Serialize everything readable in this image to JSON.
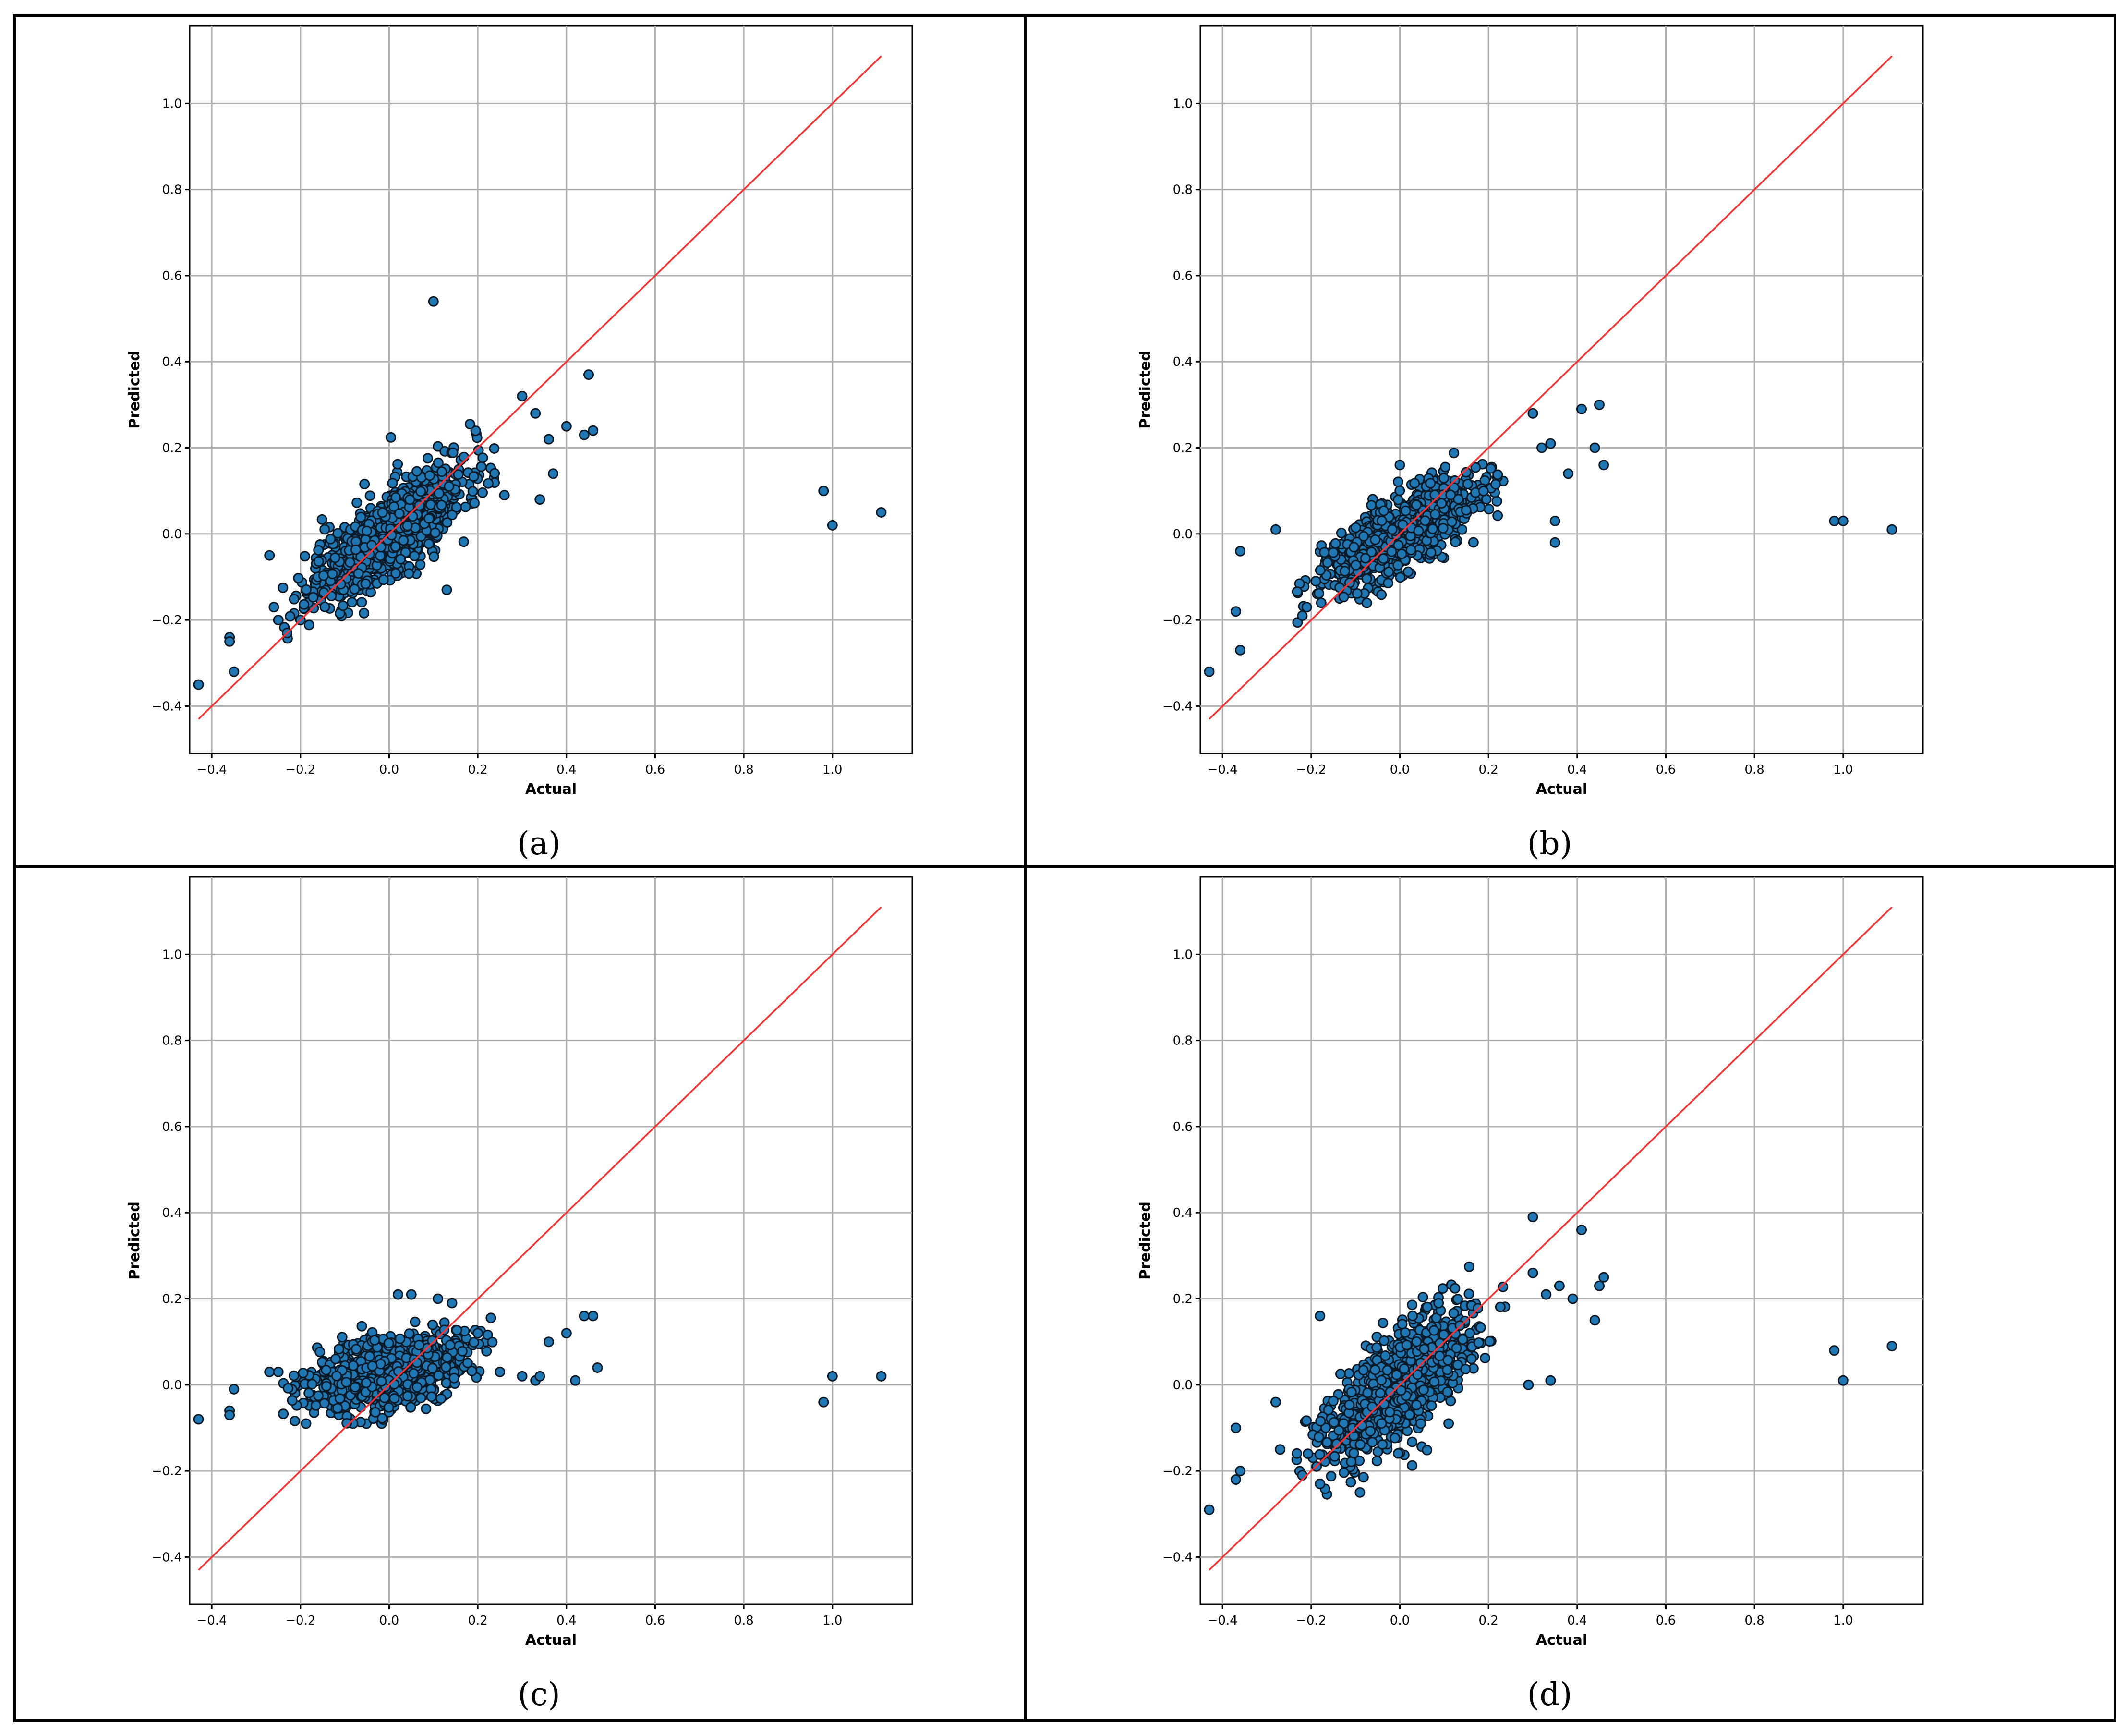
{
  "figure": {
    "colors": {
      "point_fill": "#1f77b4",
      "point_edge": "#0b1a26",
      "reference_line": "#ff3030",
      "grid": "#b0b0b0"
    }
  },
  "chart_data": [
    {
      "panel_label": "(a)",
      "type": "scatter",
      "title": "",
      "xlabel": "Actual",
      "ylabel": "Predicted",
      "xlim": [
        -0.45,
        1.18
      ],
      "ylim": [
        -0.51,
        1.18
      ],
      "xticks": [
        -0.4,
        -0.2,
        0.0,
        0.2,
        0.4,
        0.6,
        0.8,
        1.0
      ],
      "yticks": [
        -0.4,
        -0.2,
        0.0,
        0.2,
        0.4,
        0.6,
        0.8,
        1.0
      ],
      "tick_labels_x": [
        "−0.4",
        "−0.2",
        "0.0",
        "0.2",
        "0.4",
        "0.6",
        "0.8",
        "1.0"
      ],
      "tick_labels_y": [
        "−0.4",
        "−0.2",
        "0.0",
        "0.2",
        "0.4",
        "0.6",
        "0.8",
        "1.0"
      ],
      "grid": true,
      "reference_line": {
        "from": [
          -0.43,
          -0.43
        ],
        "to": [
          1.11,
          1.11
        ]
      },
      "cloud": {
        "slope": 0.7,
        "spread": 0.048,
        "seed": 11
      },
      "points": [
        [
          -0.43,
          -0.35
        ],
        [
          -0.36,
          -0.24
        ],
        [
          -0.36,
          -0.25
        ],
        [
          -0.35,
          -0.32
        ],
        [
          -0.27,
          -0.05
        ],
        [
          -0.26,
          -0.17
        ],
        [
          -0.25,
          -0.2
        ],
        [
          -0.23,
          -0.23
        ],
        [
          -0.2,
          -0.2
        ],
        [
          0.1,
          0.54
        ],
        [
          0.3,
          0.32
        ],
        [
          0.33,
          0.28
        ],
        [
          0.36,
          0.22
        ],
        [
          0.37,
          0.14
        ],
        [
          0.4,
          0.25
        ],
        [
          0.44,
          0.23
        ],
        [
          0.45,
          0.37
        ],
        [
          0.46,
          0.24
        ],
        [
          0.34,
          0.08
        ],
        [
          0.26,
          0.09
        ],
        [
          0.13,
          -0.13
        ],
        [
          0.98,
          0.1
        ],
        [
          1.0,
          0.02
        ],
        [
          1.11,
          0.05
        ]
      ]
    },
    {
      "panel_label": "(b)",
      "type": "scatter",
      "title": "",
      "xlabel": "Actual",
      "ylabel": "Predicted",
      "xlim": [
        -0.45,
        1.18
      ],
      "ylim": [
        -0.51,
        1.18
      ],
      "xticks": [
        -0.4,
        -0.2,
        0.0,
        0.2,
        0.4,
        0.6,
        0.8,
        1.0
      ],
      "yticks": [
        -0.4,
        -0.2,
        0.0,
        0.2,
        0.4,
        0.6,
        0.8,
        1.0
      ],
      "tick_labels_x": [
        "−0.4",
        "−0.2",
        "0.0",
        "0.2",
        "0.4",
        "0.6",
        "0.8",
        "1.0"
      ],
      "tick_labels_y": [
        "−0.4",
        "−0.2",
        "0.0",
        "0.2",
        "0.4",
        "0.6",
        "0.8",
        "1.0"
      ],
      "grid": true,
      "reference_line": {
        "from": [
          -0.43,
          -0.43
        ],
        "to": [
          1.11,
          1.11
        ]
      },
      "cloud": {
        "slope": 0.55,
        "spread": 0.04,
        "seed": 23
      },
      "points": [
        [
          -0.43,
          -0.32
        ],
        [
          -0.37,
          -0.18
        ],
        [
          -0.36,
          -0.04
        ],
        [
          -0.36,
          -0.27
        ],
        [
          -0.28,
          0.01
        ],
        [
          -0.22,
          -0.19
        ],
        [
          -0.21,
          -0.17
        ],
        [
          0.3,
          0.28
        ],
        [
          0.32,
          0.2
        ],
        [
          0.34,
          0.21
        ],
        [
          0.35,
          -0.02
        ],
        [
          0.35,
          0.03
        ],
        [
          0.38,
          0.14
        ],
        [
          0.41,
          0.29
        ],
        [
          0.44,
          0.2
        ],
        [
          0.45,
          0.3
        ],
        [
          0.46,
          0.16
        ],
        [
          0.0,
          0.16
        ],
        [
          0.98,
          0.03
        ],
        [
          1.0,
          0.03
        ],
        [
          1.11,
          0.01
        ]
      ]
    },
    {
      "panel_label": "(c)",
      "type": "scatter",
      "title": "",
      "xlabel": "Actual",
      "ylabel": "Predicted",
      "xlim": [
        -0.45,
        1.18
      ],
      "ylim": [
        -0.51,
        1.18
      ],
      "xticks": [
        -0.4,
        -0.2,
        0.0,
        0.2,
        0.4,
        0.6,
        0.8,
        1.0
      ],
      "yticks": [
        -0.4,
        -0.2,
        0.0,
        0.2,
        0.4,
        0.6,
        0.8,
        1.0
      ],
      "tick_labels_x": [
        "−0.4",
        "−0.2",
        "0.0",
        "0.2",
        "0.4",
        "0.6",
        "0.8",
        "1.0"
      ],
      "tick_labels_y": [
        "−0.4",
        "−0.2",
        "0.0",
        "0.2",
        "0.4",
        "0.6",
        "0.8",
        "1.0"
      ],
      "grid": true,
      "reference_line": {
        "from": [
          -0.43,
          -0.43
        ],
        "to": [
          1.11,
          1.11
        ]
      },
      "cloud": {
        "slope": 0.25,
        "spread": 0.045,
        "seed": 37
      },
      "points": [
        [
          -0.43,
          -0.08
        ],
        [
          -0.36,
          -0.06
        ],
        [
          -0.36,
          -0.07
        ],
        [
          -0.35,
          -0.01
        ],
        [
          -0.27,
          0.03
        ],
        [
          -0.25,
          0.03
        ],
        [
          0.02,
          0.21
        ],
        [
          0.05,
          0.21
        ],
        [
          0.11,
          0.2
        ],
        [
          0.2,
          0.12
        ],
        [
          0.25,
          0.03
        ],
        [
          0.3,
          0.02
        ],
        [
          0.33,
          0.01
        ],
        [
          0.34,
          0.02
        ],
        [
          0.36,
          0.1
        ],
        [
          0.4,
          0.12
        ],
        [
          0.42,
          0.01
        ],
        [
          0.44,
          0.16
        ],
        [
          0.46,
          0.16
        ],
        [
          0.47,
          0.04
        ],
        [
          0.98,
          -0.04
        ],
        [
          1.0,
          0.02
        ],
        [
          1.11,
          0.02
        ]
      ]
    },
    {
      "panel_label": "(d)",
      "type": "scatter",
      "title": "",
      "xlabel": "Actual",
      "ylabel": "Predicted",
      "xlim": [
        -0.45,
        1.18
      ],
      "ylim": [
        -0.51,
        1.18
      ],
      "xticks": [
        -0.4,
        -0.2,
        0.0,
        0.2,
        0.4,
        0.6,
        0.8,
        1.0
      ],
      "yticks": [
        -0.4,
        -0.2,
        0.0,
        0.2,
        0.4,
        0.6,
        0.8,
        1.0
      ],
      "tick_labels_x": [
        "−0.4",
        "−0.2",
        "0.0",
        "0.2",
        "0.4",
        "0.6",
        "0.8",
        "1.0"
      ],
      "tick_labels_y": [
        "−0.4",
        "−0.2",
        "0.0",
        "0.2",
        "0.4",
        "0.6",
        "0.8",
        "1.0"
      ],
      "grid": true,
      "reference_line": {
        "from": [
          -0.43,
          -0.43
        ],
        "to": [
          1.11,
          1.11
        ]
      },
      "cloud": {
        "slope": 0.75,
        "spread": 0.06,
        "seed": 53
      },
      "points": [
        [
          -0.43,
          -0.29
        ],
        [
          -0.37,
          -0.1
        ],
        [
          -0.37,
          -0.22
        ],
        [
          -0.36,
          -0.2
        ],
        [
          -0.28,
          -0.04
        ],
        [
          -0.27,
          -0.15
        ],
        [
          -0.22,
          -0.21
        ],
        [
          -0.18,
          0.16
        ],
        [
          -0.18,
          -0.23
        ],
        [
          -0.09,
          -0.25
        ],
        [
          0.3,
          0.39
        ],
        [
          0.41,
          0.36
        ],
        [
          0.3,
          0.26
        ],
        [
          0.33,
          0.21
        ],
        [
          0.36,
          0.23
        ],
        [
          0.39,
          0.2
        ],
        [
          0.44,
          0.15
        ],
        [
          0.45,
          0.23
        ],
        [
          0.46,
          0.25
        ],
        [
          0.34,
          0.01
        ],
        [
          0.29,
          0.0
        ],
        [
          0.11,
          -0.09
        ],
        [
          0.98,
          0.08
        ],
        [
          1.0,
          0.01
        ],
        [
          1.11,
          0.09
        ]
      ]
    }
  ]
}
